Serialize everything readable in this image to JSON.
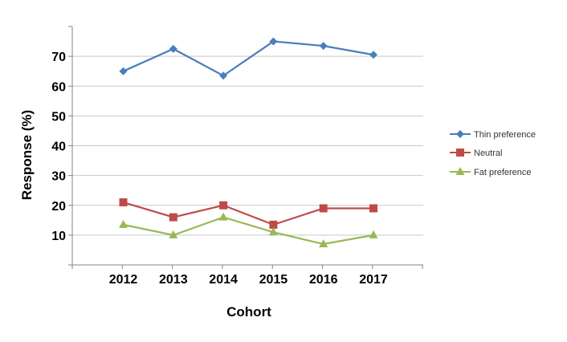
{
  "chart_data": {
    "type": "line",
    "title": "",
    "xlabel": "Cohort",
    "ylabel": "Response (%)",
    "categories": [
      "2012",
      "2013",
      "2014",
      "2015",
      "2016",
      "2017"
    ],
    "ylim": [
      0,
      80
    ],
    "yticks": [
      "10",
      "20",
      "30",
      "40",
      "50",
      "60",
      "70"
    ],
    "grid": true,
    "legend_position": "right",
    "series": [
      {
        "name": "Thin preference",
        "values": [
          65,
          72.5,
          63.5,
          75,
          73.5,
          70.5
        ],
        "color": "#4a7ebb",
        "marker": "diamond"
      },
      {
        "name": "Neutral",
        "values": [
          21,
          16,
          20,
          13.5,
          19,
          19
        ],
        "color": "#be4b48",
        "marker": "square"
      },
      {
        "name": "Fat preference",
        "values": [
          13.5,
          10,
          16,
          11,
          7,
          10
        ],
        "color": "#98b954",
        "marker": "triangle"
      }
    ]
  }
}
